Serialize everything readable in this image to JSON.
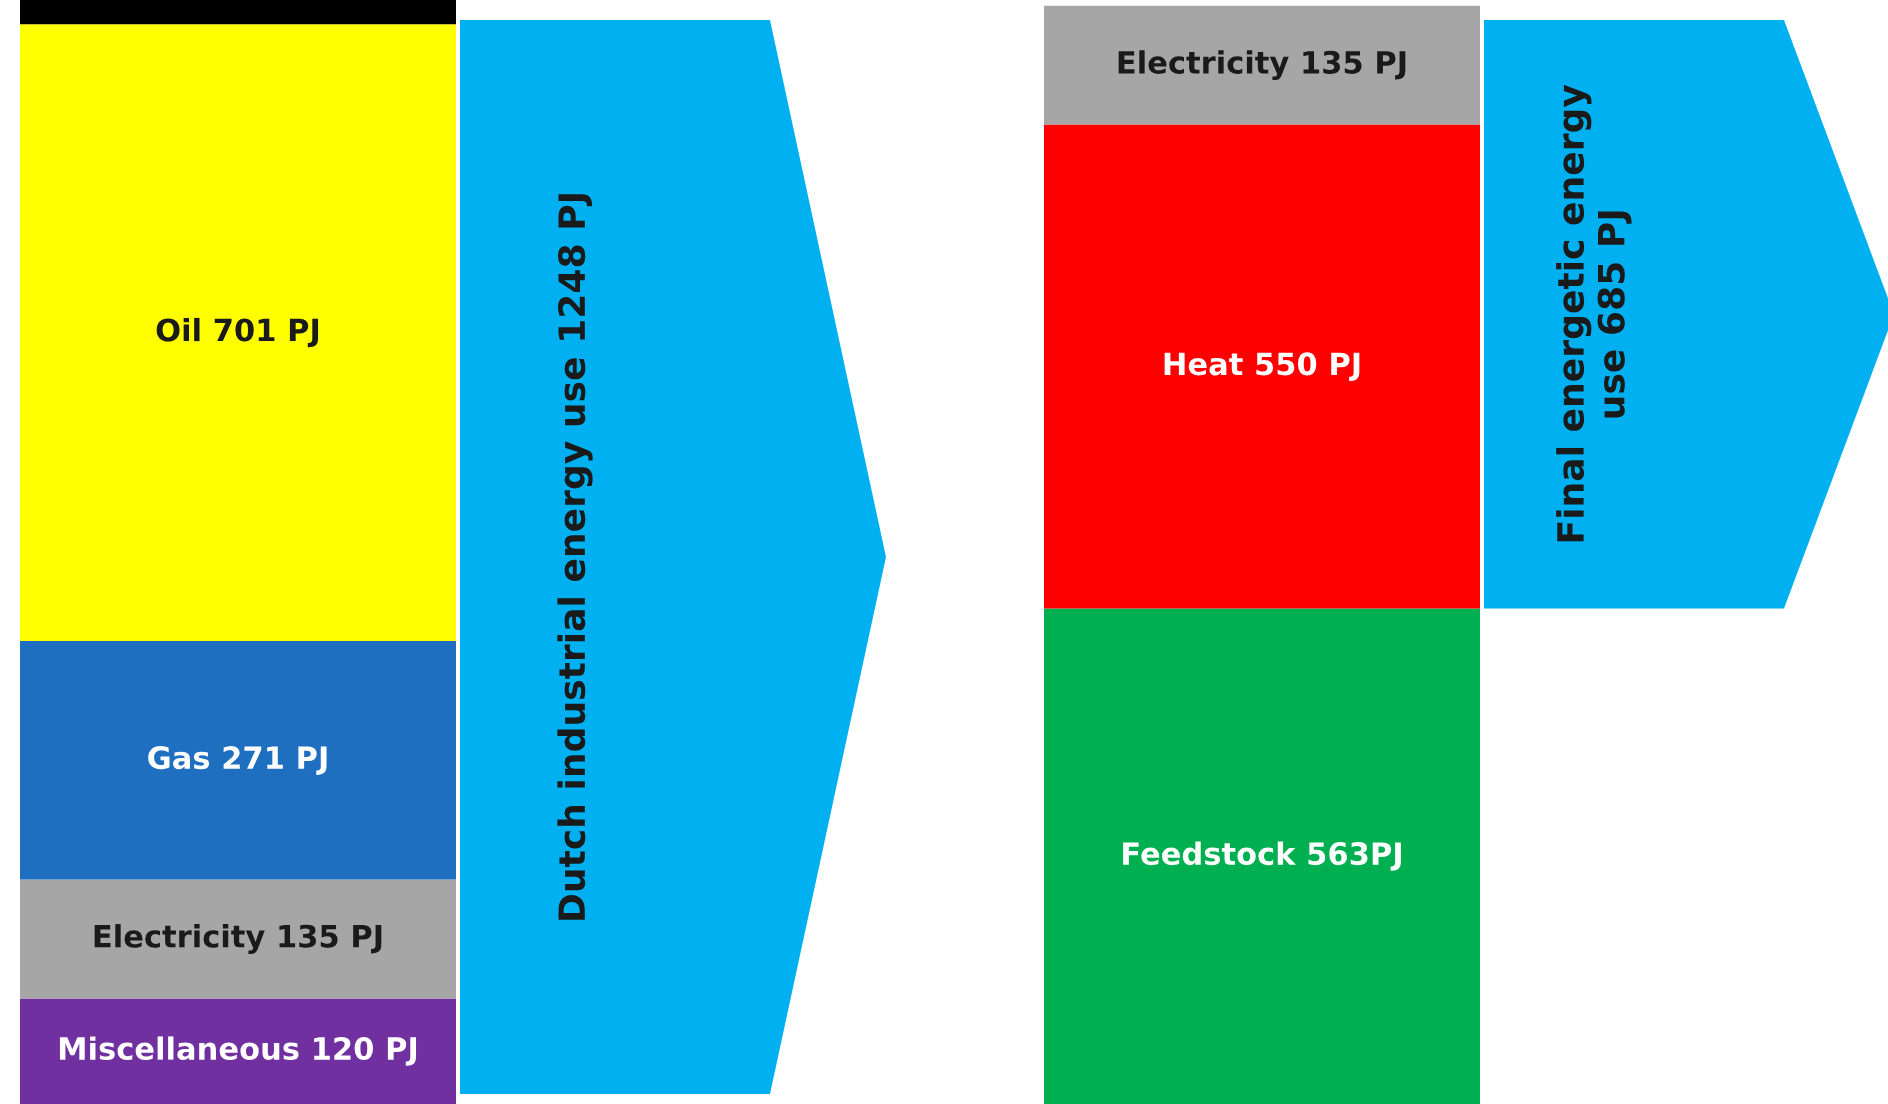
{
  "chart_data": {
    "type": "bar",
    "stacked": true,
    "categories": [
      null,
      null
    ],
    "series": [
      {
        "color": "#7030a0",
        "values": [
          120,
          null
        ],
        "value_labels": [
          "Miscellaneous 120 PJ",
          null
        ]
      },
      {
        "color": "#a6a6a6",
        "values": [
          135,
          null
        ],
        "value_labels": [
          "Electricity 135 PJ",
          null
        ]
      },
      {
        "color": "#1f6fc0",
        "values": [
          271,
          null
        ],
        "value_labels": [
          "Gas 271 PJ",
          null
        ]
      },
      {
        "color": "#ffff00",
        "values": [
          701,
          null
        ],
        "value_labels": [
          "Oil 701 PJ",
          null
        ]
      },
      {
        "color": "#00b050",
        "values": [
          null,
          563
        ],
        "value_labels": [
          null,
          "Feedstock 563PJ"
        ]
      },
      {
        "color": "#ff0000",
        "values": [
          null,
          550
        ],
        "value_labels": [
          null,
          "Heat 550 PJ"
        ]
      },
      {
        "color": "#a6a6a6",
        "values": [
          null,
          135
        ],
        "value_labels": [
          null,
          "Electricity 135 PJ"
        ]
      }
    ],
    "annotations": [
      "Dutch industrial energy use 1248 PJ",
      "Final energetic energy\nuse 685 PJ"
    ]
  }
}
